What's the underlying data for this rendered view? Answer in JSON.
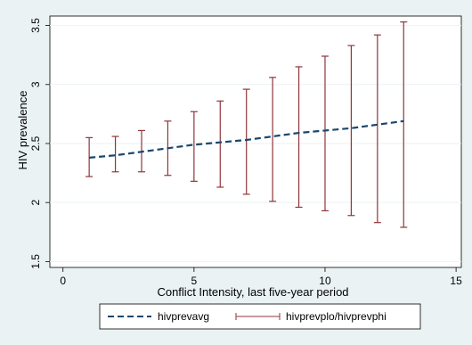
{
  "chart_data": {
    "type": "line",
    "xlabel": "Conflict Intensity, last five-year period",
    "ylabel": "HIV prevalence",
    "xlim": [
      -0.5,
      15.2
    ],
    "ylim": [
      1.45,
      3.58
    ],
    "xticks": [
      0,
      5,
      10,
      15
    ],
    "yticks": [
      1.5,
      2,
      2.5,
      3,
      3.5
    ],
    "grid": "horizontal",
    "legend_position": "bottom",
    "colors": {
      "plot_bg": "#ffffff",
      "outer_bg": "#eaf2f3",
      "line": "#1a476f",
      "range": "#90353b",
      "grid": "#eaf2f3"
    },
    "series": [
      {
        "name": "hivprevavg",
        "style": "dashed-line",
        "x": [
          1,
          2,
          3,
          4,
          5,
          6,
          7,
          8,
          9,
          10,
          11,
          12,
          13
        ],
        "values": [
          2.38,
          2.4,
          2.43,
          2.46,
          2.49,
          2.51,
          2.53,
          2.56,
          2.59,
          2.61,
          2.63,
          2.66,
          2.69
        ]
      },
      {
        "name": "hivprevplo/hivprevphi",
        "style": "capped-range",
        "x": [
          1,
          2,
          3,
          4,
          5,
          6,
          7,
          8,
          9,
          10,
          11,
          12,
          13
        ],
        "low": [
          2.22,
          2.26,
          2.26,
          2.23,
          2.18,
          2.13,
          2.07,
          2.01,
          1.96,
          1.93,
          1.89,
          1.83,
          1.79
        ],
        "high": [
          2.55,
          2.56,
          2.61,
          2.69,
          2.77,
          2.86,
          2.96,
          3.06,
          3.15,
          3.24,
          3.33,
          3.42,
          3.53
        ]
      }
    ]
  }
}
